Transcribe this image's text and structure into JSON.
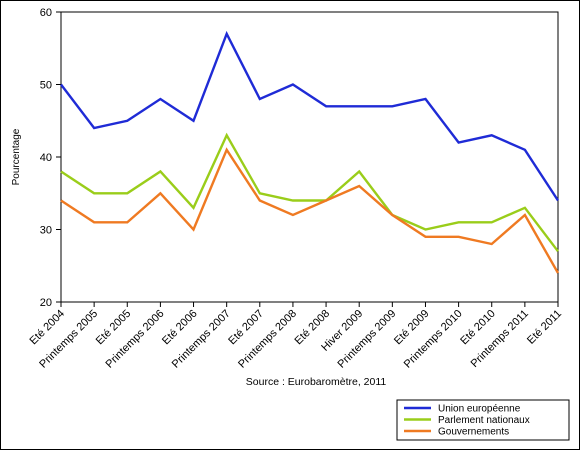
{
  "chart_data": {
    "type": "line",
    "categories": [
      "Eté 2004",
      "Printemps 2005",
      "Eté 2005",
      "Printemps 2006",
      "Eté 2006",
      "Printemps 2007",
      "Eté 2007",
      "Printemps 2008",
      "Eté 2008",
      "Hiver 2009",
      "Printemps 2009",
      "Eté 2009",
      "Printemps 2010",
      "Eté 2010",
      "Printemps 2011",
      "Eté 2011"
    ],
    "series": [
      {
        "name": "Union européenne",
        "color": "#1f2bd6",
        "values": [
          50,
          44,
          45,
          48,
          45,
          57,
          48,
          50,
          47,
          47,
          47,
          48,
          42,
          43,
          41,
          34
        ]
      },
      {
        "name": "Parlement nationaux",
        "color": "#9acd1a",
        "values": [
          38,
          35,
          35,
          38,
          33,
          43,
          35,
          34,
          34,
          38,
          32,
          30,
          31,
          31,
          33,
          27
        ]
      },
      {
        "name": "Gouvernements",
        "color": "#ef7a22",
        "values": [
          34,
          31,
          31,
          35,
          30,
          41,
          34,
          32,
          34,
          36,
          32,
          29,
          29,
          28,
          32,
          24
        ]
      }
    ],
    "ylabel": "Pourcentage",
    "ylim": [
      20,
      60
    ],
    "yticks": [
      20,
      30,
      40,
      50,
      60
    ],
    "source": "Source : Eurobaromètre, 2011",
    "legend_position": "bottom-right",
    "grid": false
  }
}
